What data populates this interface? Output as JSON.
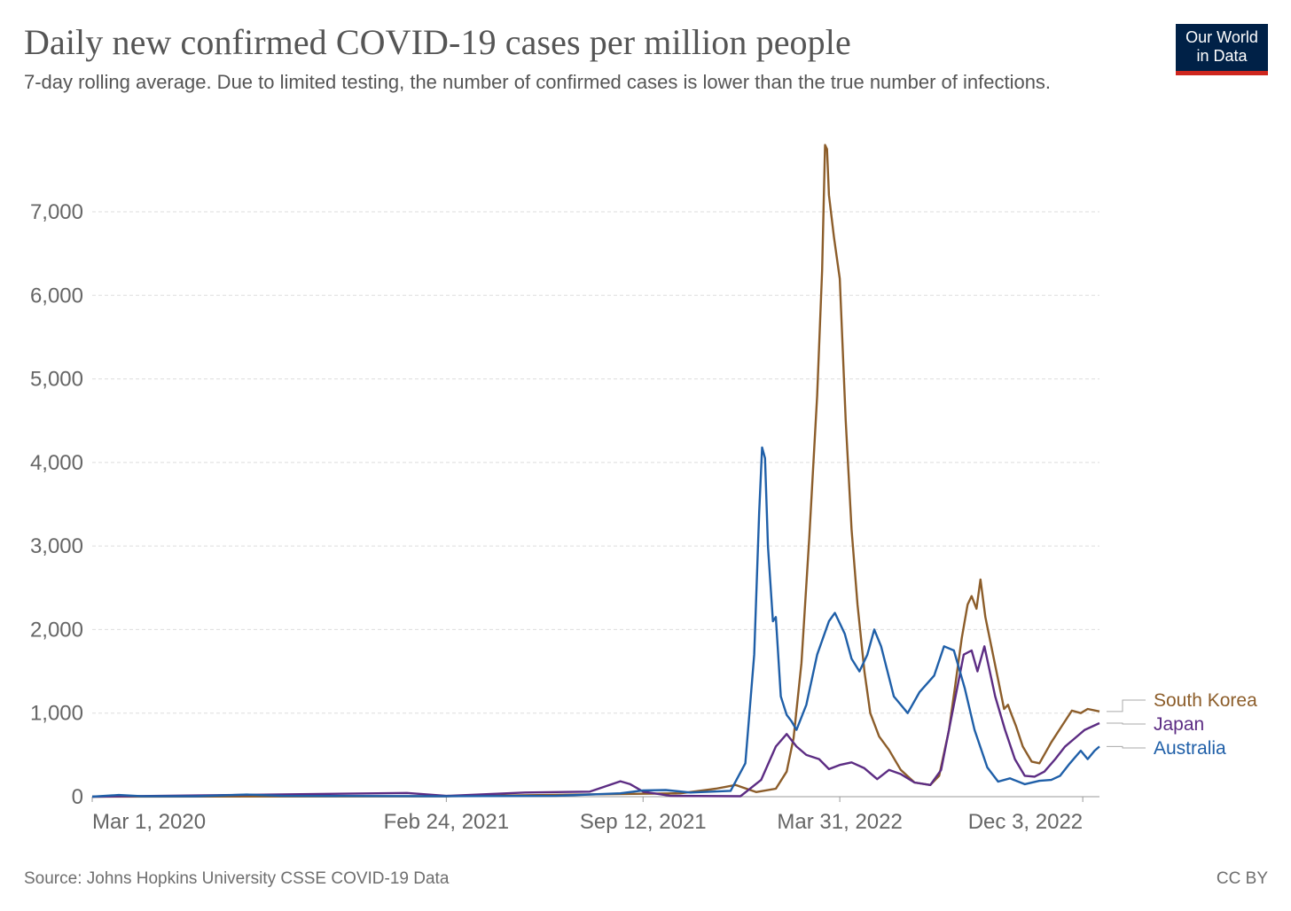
{
  "header": {
    "title": "Daily new confirmed COVID-19 cases per million people",
    "subtitle": "7-day rolling average. Due to limited testing, the number of confirmed cases is lower than the true number of infections.",
    "logo_line1": "Our World",
    "logo_line2": "in Data"
  },
  "footer": {
    "source": "Source: Johns Hopkins University CSSE COVID-19 Data",
    "license": "CC BY"
  },
  "chart_data": {
    "type": "line",
    "title": "Daily new confirmed COVID-19 cases per million people",
    "subtitle": "7-day rolling average. Due to limited testing, the number of confirmed cases is lower than the true number of infections.",
    "xlabel": "",
    "ylabel": "",
    "x_range": [
      "2020-03-01",
      "2022-12-20"
    ],
    "ylim": [
      0,
      7800
    ],
    "y_ticks": [
      0,
      1000,
      2000,
      3000,
      4000,
      5000,
      6000,
      7000
    ],
    "x_ticks": [
      {
        "date": "2020-03-01",
        "label": "Mar 1, 2020"
      },
      {
        "date": "2021-02-24",
        "label": "Feb 24, 2021"
      },
      {
        "date": "2021-09-12",
        "label": "Sep 12, 2021"
      },
      {
        "date": "2022-03-31",
        "label": "Mar 31, 2022"
      },
      {
        "date": "2022-12-03",
        "label": "Dec 3, 2022"
      }
    ],
    "grid": "horizontal dashed",
    "legend": "line labels at right end",
    "series": [
      {
        "name": "South Korea",
        "color": "#8c5d2a",
        "points": [
          [
            "2020-03-01",
            0
          ],
          [
            "2021-02-24",
            5
          ],
          [
            "2021-09-12",
            35
          ],
          [
            "2021-10-20",
            40
          ],
          [
            "2021-11-25",
            95
          ],
          [
            "2021-12-15",
            140
          ],
          [
            "2022-01-05",
            55
          ],
          [
            "2022-01-25",
            95
          ],
          [
            "2022-02-05",
            300
          ],
          [
            "2022-02-12",
            700
          ],
          [
            "2022-02-20",
            1600
          ],
          [
            "2022-02-28",
            3100
          ],
          [
            "2022-03-08",
            4800
          ],
          [
            "2022-03-13",
            6300
          ],
          [
            "2022-03-16",
            7800
          ],
          [
            "2022-03-18",
            7750
          ],
          [
            "2022-03-20",
            7200
          ],
          [
            "2022-03-25",
            6700
          ],
          [
            "2022-03-31",
            6200
          ],
          [
            "2022-04-06",
            4500
          ],
          [
            "2022-04-12",
            3200
          ],
          [
            "2022-04-18",
            2300
          ],
          [
            "2022-04-25",
            1500
          ],
          [
            "2022-05-01",
            1000
          ],
          [
            "2022-05-10",
            720
          ],
          [
            "2022-05-20",
            560
          ],
          [
            "2022-06-01",
            320
          ],
          [
            "2022-06-15",
            170
          ],
          [
            "2022-07-01",
            140
          ],
          [
            "2022-07-10",
            250
          ],
          [
            "2022-07-20",
            800
          ],
          [
            "2022-07-26",
            1300
          ],
          [
            "2022-08-02",
            1900
          ],
          [
            "2022-08-08",
            2300
          ],
          [
            "2022-08-12",
            2400
          ],
          [
            "2022-08-17",
            2250
          ],
          [
            "2022-08-21",
            2600
          ],
          [
            "2022-08-26",
            2150
          ],
          [
            "2022-09-01",
            1800
          ],
          [
            "2022-09-08",
            1400
          ],
          [
            "2022-09-14",
            1050
          ],
          [
            "2022-09-18",
            1100
          ],
          [
            "2022-09-21",
            1000
          ],
          [
            "2022-09-26",
            850
          ],
          [
            "2022-10-03",
            600
          ],
          [
            "2022-10-12",
            420
          ],
          [
            "2022-10-20",
            400
          ],
          [
            "2022-11-01",
            650
          ],
          [
            "2022-11-12",
            850
          ],
          [
            "2022-11-22",
            1030
          ],
          [
            "2022-12-01",
            1000
          ],
          [
            "2022-12-08",
            1050
          ],
          [
            "2022-12-20",
            1020
          ]
        ]
      },
      {
        "name": "Japan",
        "color": "#5c2c83",
        "points": [
          [
            "2020-03-01",
            0
          ],
          [
            "2021-01-15",
            45
          ],
          [
            "2021-02-24",
            10
          ],
          [
            "2021-05-15",
            50
          ],
          [
            "2021-07-20",
            60
          ],
          [
            "2021-08-20",
            185
          ],
          [
            "2021-08-30",
            150
          ],
          [
            "2021-09-12",
            60
          ],
          [
            "2021-10-10",
            10
          ],
          [
            "2021-12-20",
            5
          ],
          [
            "2022-01-10",
            200
          ],
          [
            "2022-01-25",
            600
          ],
          [
            "2022-02-05",
            750
          ],
          [
            "2022-02-15",
            600
          ],
          [
            "2022-02-25",
            500
          ],
          [
            "2022-03-10",
            450
          ],
          [
            "2022-03-20",
            330
          ],
          [
            "2022-03-31",
            380
          ],
          [
            "2022-04-12",
            410
          ],
          [
            "2022-04-25",
            340
          ],
          [
            "2022-05-08",
            210
          ],
          [
            "2022-05-20",
            320
          ],
          [
            "2022-06-01",
            270
          ],
          [
            "2022-06-15",
            170
          ],
          [
            "2022-07-01",
            140
          ],
          [
            "2022-07-12",
            320
          ],
          [
            "2022-07-25",
            1100
          ],
          [
            "2022-08-04",
            1700
          ],
          [
            "2022-08-12",
            1750
          ],
          [
            "2022-08-18",
            1500
          ],
          [
            "2022-08-25",
            1800
          ],
          [
            "2022-09-05",
            1200
          ],
          [
            "2022-09-15",
            800
          ],
          [
            "2022-09-25",
            450
          ],
          [
            "2022-10-05",
            250
          ],
          [
            "2022-10-15",
            240
          ],
          [
            "2022-10-25",
            300
          ],
          [
            "2022-11-05",
            450
          ],
          [
            "2022-11-15",
            600
          ],
          [
            "2022-11-25",
            700
          ],
          [
            "2022-12-05",
            800
          ],
          [
            "2022-12-20",
            880
          ]
        ]
      },
      {
        "name": "Australia",
        "color": "#1f5fa8",
        "points": [
          [
            "2020-03-01",
            0
          ],
          [
            "2020-03-28",
            20
          ],
          [
            "2020-04-20",
            5
          ],
          [
            "2020-06-15",
            5
          ],
          [
            "2020-08-05",
            25
          ],
          [
            "2020-09-10",
            10
          ],
          [
            "2021-02-24",
            5
          ],
          [
            "2021-06-15",
            10
          ],
          [
            "2021-08-20",
            40
          ],
          [
            "2021-09-12",
            75
          ],
          [
            "2021-10-05",
            80
          ],
          [
            "2021-10-30",
            50
          ],
          [
            "2021-12-10",
            70
          ],
          [
            "2021-12-25",
            400
          ],
          [
            "2022-01-03",
            1700
          ],
          [
            "2022-01-08",
            3400
          ],
          [
            "2022-01-11",
            4180
          ],
          [
            "2022-01-14",
            4050
          ],
          [
            "2022-01-17",
            3000
          ],
          [
            "2022-01-22",
            2100
          ],
          [
            "2022-01-25",
            2150
          ],
          [
            "2022-01-30",
            1200
          ],
          [
            "2022-02-05",
            980
          ],
          [
            "2022-02-10",
            900
          ],
          [
            "2022-02-15",
            800
          ],
          [
            "2022-02-25",
            1100
          ],
          [
            "2022-03-08",
            1700
          ],
          [
            "2022-03-20",
            2100
          ],
          [
            "2022-03-26",
            2200
          ],
          [
            "2022-04-05",
            1950
          ],
          [
            "2022-04-12",
            1650
          ],
          [
            "2022-04-20",
            1500
          ],
          [
            "2022-04-28",
            1700
          ],
          [
            "2022-05-05",
            2000
          ],
          [
            "2022-05-12",
            1800
          ],
          [
            "2022-05-25",
            1200
          ],
          [
            "2022-06-08",
            1000
          ],
          [
            "2022-06-20",
            1250
          ],
          [
            "2022-07-05",
            1450
          ],
          [
            "2022-07-15",
            1800
          ],
          [
            "2022-07-25",
            1750
          ],
          [
            "2022-08-05",
            1300
          ],
          [
            "2022-08-15",
            800
          ],
          [
            "2022-08-28",
            350
          ],
          [
            "2022-09-08",
            180
          ],
          [
            "2022-09-20",
            220
          ],
          [
            "2022-10-05",
            150
          ],
          [
            "2022-10-20",
            190
          ],
          [
            "2022-11-01",
            200
          ],
          [
            "2022-11-10",
            250
          ],
          [
            "2022-11-20",
            400
          ],
          [
            "2022-12-01",
            550
          ],
          [
            "2022-12-08",
            450
          ],
          [
            "2022-12-15",
            550
          ],
          [
            "2022-12-20",
            600
          ]
        ]
      }
    ]
  }
}
